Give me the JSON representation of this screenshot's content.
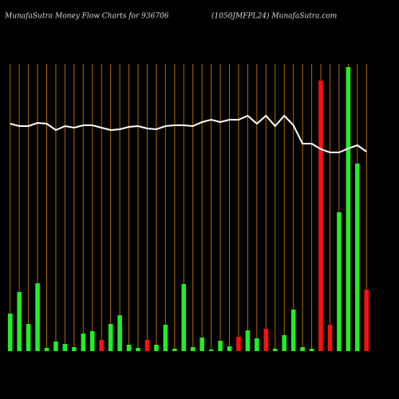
{
  "chart_data": {
    "type": "bar",
    "title": "MunafaSutra  Money Flow  Charts for 936706",
    "subtitle": "(1050JMFPL24) MunafaSutra.com",
    "categories": [
      null,
      null,
      null,
      null,
      null,
      null,
      null,
      null,
      null,
      null,
      null,
      null,
      null,
      null,
      null,
      null,
      null,
      null,
      null,
      null,
      null,
      null,
      null,
      null,
      null,
      null,
      null,
      null,
      null,
      null,
      null,
      null,
      null,
      null,
      null,
      null,
      null,
      null,
      null,
      null
    ],
    "values": [
      47,
      74,
      34,
      85,
      4,
      12,
      9,
      5,
      22,
      25,
      14,
      34,
      45,
      8,
      4,
      14,
      8,
      33,
      3,
      84,
      5,
      17,
      2,
      13,
      6,
      18,
      26,
      16,
      28,
      3,
      20,
      52,
      5,
      3,
      339,
      33,
      174,
      356,
      235,
      77
    ],
    "colors": [
      "#22ee22",
      "#22ee22",
      "#22ee22",
      "#22ee22",
      "#22ee22",
      "#22ee22",
      "#22ee22",
      "#22ee22",
      "#22ee22",
      "#22ee22",
      "#ff1010",
      "#22ee22",
      "#22ee22",
      "#22ee22",
      "#22ee22",
      "#ff1010",
      "#22ee22",
      "#22ee22",
      "#22ee22",
      "#22ee22",
      "#22ee22",
      "#22ee22",
      "#22ee22",
      "#22ee22",
      "#22ee22",
      "#ff1010",
      "#22ee22",
      "#22ee22",
      "#ff1010",
      "#22ee22",
      "#22ee22",
      "#22ee22",
      "#22ee22",
      "#22ee22",
      "#ff1010",
      "#ff1010",
      "#22ee22",
      "#22ee22",
      "#22ee22",
      "#ff1010"
    ],
    "line": {
      "values": [
        285,
        282,
        282,
        286,
        285,
        277,
        282,
        280,
        283,
        283,
        280,
        277,
        278,
        281,
        282,
        279,
        278,
        282,
        283,
        283,
        282,
        287,
        290,
        287,
        290,
        290,
        295,
        285,
        295,
        282,
        295,
        283,
        260,
        260,
        253,
        249,
        249,
        254,
        258,
        250
      ],
      "color": "#ffffff"
    },
    "ylim": [
      0,
      360
    ],
    "grid": true,
    "grid_color": "#b06a00"
  }
}
